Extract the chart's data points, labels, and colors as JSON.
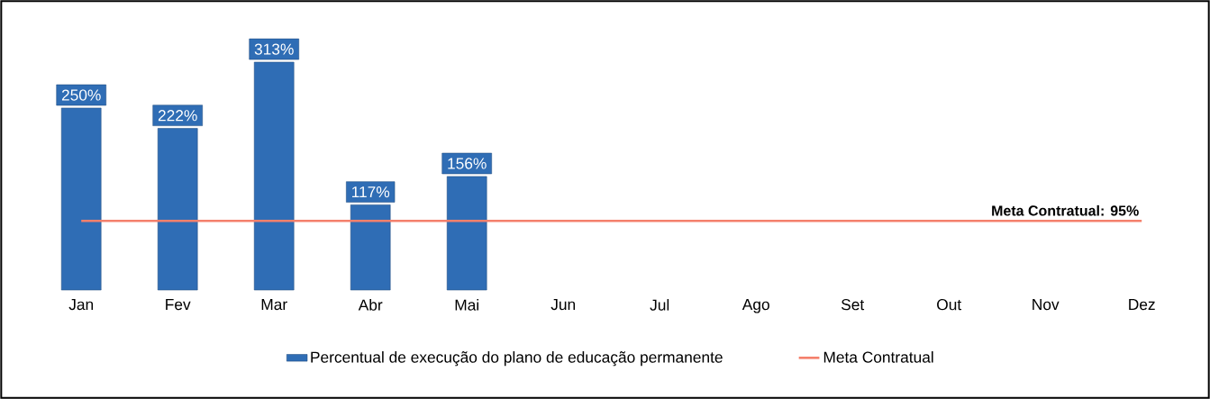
{
  "chart_data": {
    "type": "bar",
    "categories": [
      "Jan",
      "Fev",
      "Mar",
      "Abr",
      "Mai",
      "Jun",
      "Jul",
      "Ago",
      "Set",
      "Out",
      "Nov",
      "Dez"
    ],
    "series": [
      {
        "name": "Percentual de execução do plano de educação permanente",
        "color": "#2f6db5",
        "values": [
          250,
          222,
          313,
          117,
          156,
          null,
          null,
          null,
          null,
          null,
          null,
          null
        ],
        "value_labels": [
          "250%",
          "222%",
          "313%",
          "117%",
          "156%",
          null,
          null,
          null,
          null,
          null,
          null,
          null
        ]
      },
      {
        "name": "Meta Contratual",
        "type": "line",
        "color": "#f4806c",
        "values": [
          95,
          95,
          95,
          95,
          95,
          95,
          95,
          95,
          95,
          95,
          95,
          95
        ]
      }
    ],
    "annotations": [
      "Meta Contratual: 95%"
    ],
    "legend": "bottom",
    "grid": false,
    "marker": "none",
    "line_style": "solid"
  }
}
